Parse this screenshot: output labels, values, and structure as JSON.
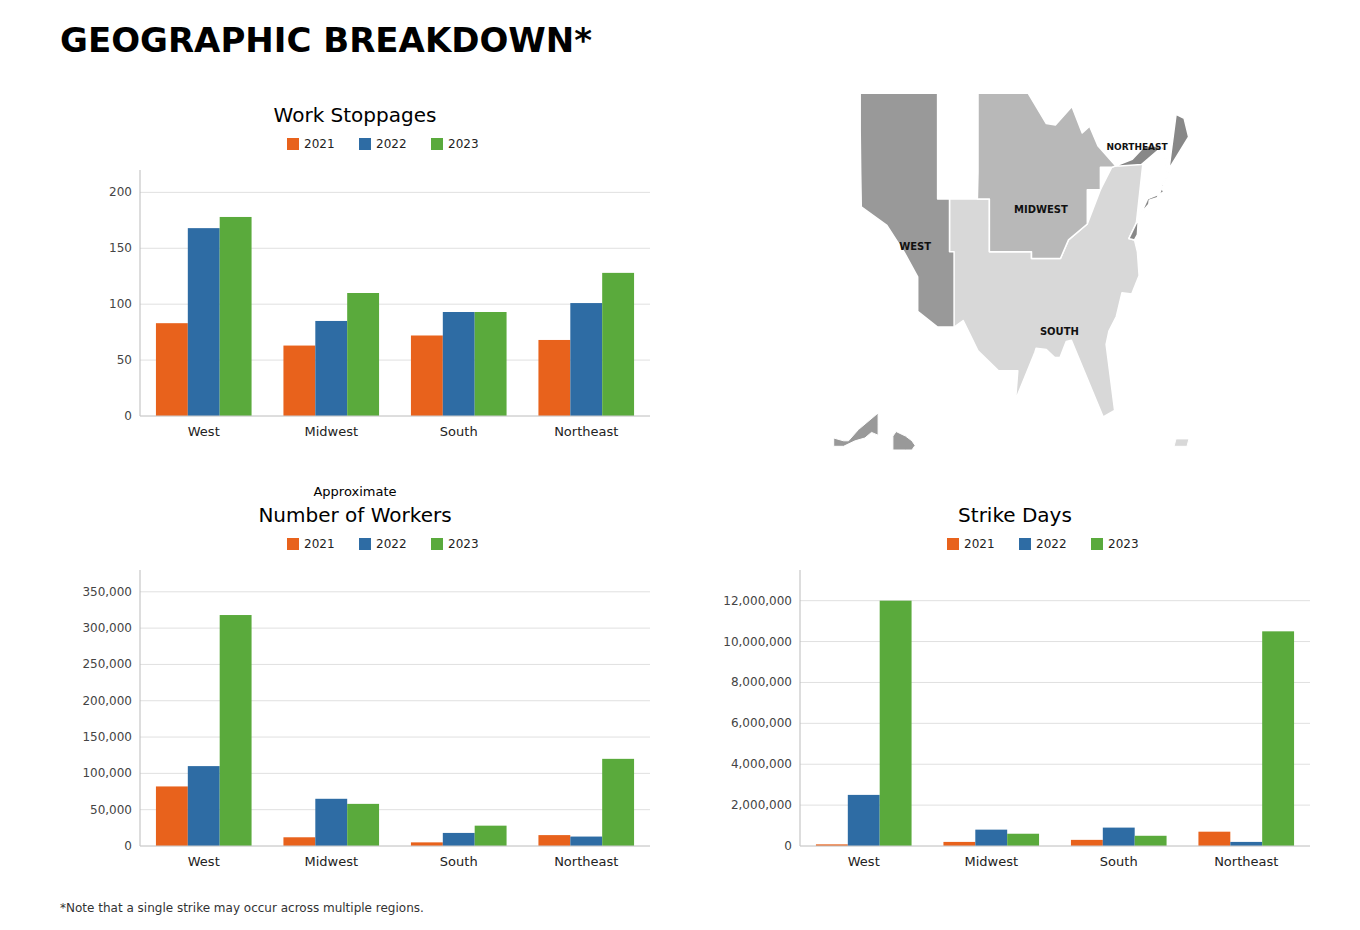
{
  "title": "GEOGRAPHIC BREAKDOWN*",
  "annotations": [
    "*Note that a single strike may occur across multiple regions."
  ],
  "chart_data": [
    {
      "type": "bar",
      "title": "Work Stoppages",
      "categories": [
        "West",
        "Midwest",
        "South",
        "Northeast"
      ],
      "series": [
        {
          "name": "2021",
          "color": "#e8621c",
          "values": [
            83,
            63,
            72,
            68
          ]
        },
        {
          "name": "2022",
          "color": "#2e6ca4",
          "values": [
            168,
            85,
            93,
            101
          ]
        },
        {
          "name": "2023",
          "color": "#5aaa3c",
          "values": [
            178,
            110,
            93,
            128
          ]
        }
      ],
      "ylim": [
        0,
        220
      ],
      "yticks": [
        0,
        50,
        100,
        150,
        200
      ],
      "grid": true,
      "legend": "top"
    },
    {
      "type": "map",
      "categories": [
        "WEST",
        "MIDWEST",
        "NORTHEAST",
        "SOUTH"
      ],
      "colors": [
        "#999999",
        "#b8b8b8",
        "#888888",
        "#d8d8d8"
      ]
    },
    {
      "type": "bar",
      "title": "Number of Workers",
      "subtitle": "Approximate",
      "categories": [
        "West",
        "Midwest",
        "South",
        "Northeast"
      ],
      "series": [
        {
          "name": "2021",
          "color": "#e8621c",
          "values": [
            82000,
            12000,
            5000,
            15000
          ]
        },
        {
          "name": "2022",
          "color": "#2e6ca4",
          "values": [
            110000,
            65000,
            18000,
            13000
          ]
        },
        {
          "name": "2023",
          "color": "#5aaa3c",
          "values": [
            318000,
            58000,
            28000,
            120000
          ]
        }
      ],
      "ylim": [
        0,
        380000
      ],
      "yticks": [
        0,
        {
          "value": 50000,
          "label": "50,000"
        },
        {
          "value": 100000,
          "label": "100,000"
        },
        {
          "value": 150000,
          "label": "150,000"
        },
        {
          "value": 200000,
          "label": "200,000"
        },
        {
          "value": 250000,
          "label": "250,000"
        },
        {
          "value": 300000,
          "label": "300,000"
        },
        {
          "value": 350000,
          "label": "350,000"
        }
      ],
      "grid": true,
      "legend": "top"
    },
    {
      "type": "bar",
      "title": "Strike Days",
      "categories": [
        "West",
        "Midwest",
        "South",
        "Northeast"
      ],
      "series": [
        {
          "name": "2021",
          "color": "#e8621c",
          "values": [
            80000,
            200000,
            300000,
            700000
          ]
        },
        {
          "name": "2022",
          "color": "#2e6ca4",
          "values": [
            2500000,
            800000,
            900000,
            200000
          ]
        },
        {
          "name": "2023",
          "color": "#5aaa3c",
          "values": [
            12000000,
            600000,
            500000,
            10500000
          ]
        }
      ],
      "ylim": [
        0,
        13500000
      ],
      "yticks": [
        0,
        {
          "value": 2000000,
          "label": "2,000,000"
        },
        {
          "value": 4000000,
          "label": "4,000,000"
        },
        {
          "value": 6000000,
          "label": "6,000,000"
        },
        {
          "value": 8000000,
          "label": "8,000,000"
        },
        {
          "value": 10000000,
          "label": "10,000,000"
        },
        {
          "value": 12000000,
          "label": "12,000,000"
        }
      ],
      "grid": true,
      "legend": "top"
    }
  ]
}
